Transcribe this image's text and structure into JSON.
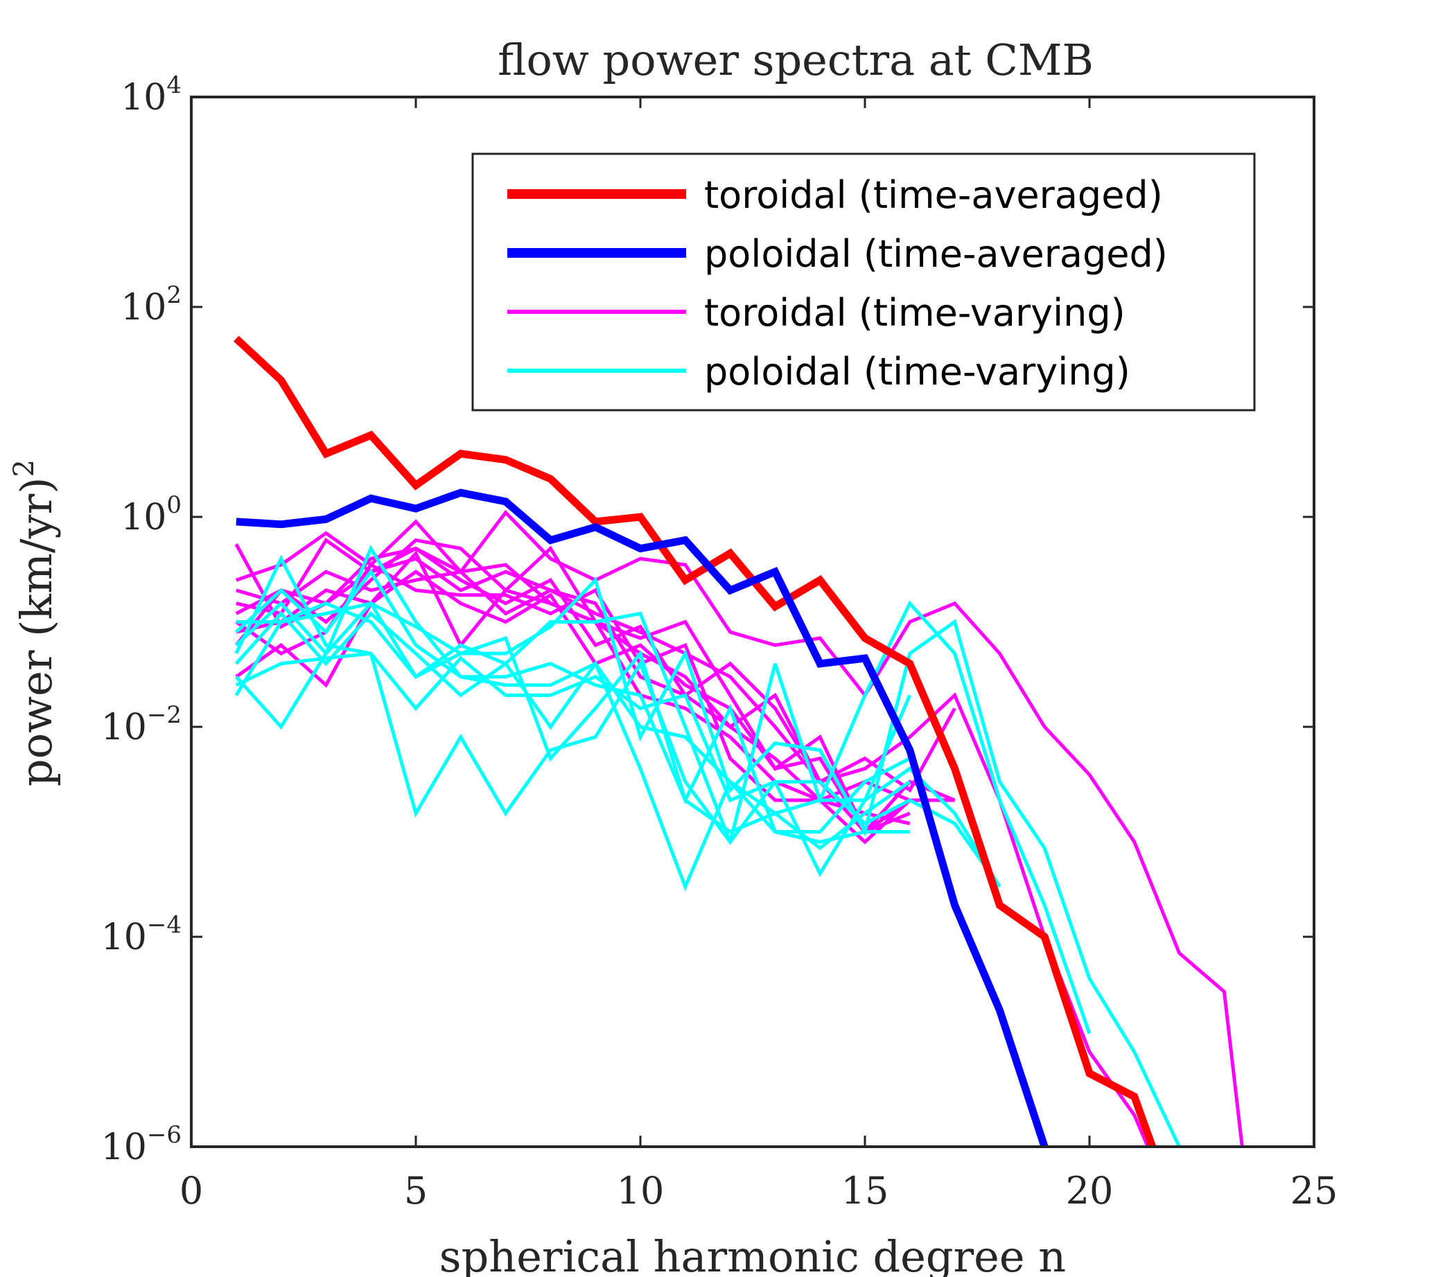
{
  "chart_data": {
    "type": "line",
    "title": "flow power spectra at CMB",
    "xlabel": "spherical harmonic degree n",
    "ylabel_base": "power (km/yr)",
    "ylabel_exp": "2",
    "xscale": "linear",
    "yscale": "log",
    "xlim": [
      0,
      25
    ],
    "ylim": [
      1e-06,
      10000.0
    ],
    "xticks": [
      0,
      5,
      10,
      15,
      20,
      25
    ],
    "xtick_labels": [
      "0",
      "5",
      "10",
      "15",
      "20",
      "25"
    ],
    "yticks": [
      1e-06,
      0.0001,
      0.01,
      1.0,
      100.0,
      10000.0
    ],
    "ytick_labels": [
      {
        "base": "10",
        "exp": "−6"
      },
      {
        "base": "10",
        "exp": "−4"
      },
      {
        "base": "10",
        "exp": "−2"
      },
      {
        "base": "10",
        "exp": "0"
      },
      {
        "base": "10",
        "exp": "2"
      },
      {
        "base": "10",
        "exp": "4"
      }
    ],
    "legend_position": "top-right",
    "legend": [
      {
        "label": "toroidal (time-averaged)",
        "color": "#ff0000",
        "weight": "thick"
      },
      {
        "label": "poloidal (time-averaged)",
        "color": "#0000ff",
        "weight": "thick"
      },
      {
        "label": "toroidal (time-varying)",
        "color": "#ff00ff",
        "weight": "thin"
      },
      {
        "label": "poloidal (time-varying)",
        "color": "#00ffff",
        "weight": "thin"
      }
    ],
    "series": [
      {
        "name": "toroidal (time-varying) 1",
        "color": "#ff00ff",
        "weight": "thin",
        "x": [
          1,
          2,
          3,
          4,
          5,
          6,
          7,
          8,
          9,
          10,
          11,
          12,
          13,
          14,
          15,
          16,
          17,
          18,
          19,
          20,
          21,
          22,
          23,
          23.4
        ],
        "y": [
          0.55,
          0.09,
          0.15,
          0.4,
          0.5,
          0.3,
          1.1,
          0.4,
          0.25,
          0.4,
          0.35,
          0.08,
          0.06,
          0.07,
          0.02,
          0.1,
          0.15,
          0.05,
          0.01,
          0.0035,
          0.0008,
          7e-05,
          3e-05,
          1e-06
        ]
      },
      {
        "name": "toroidal (time-varying) 2",
        "color": "#ff00ff",
        "weight": "thin",
        "x": [
          1,
          2,
          3,
          4,
          5,
          6,
          7,
          8,
          9,
          10,
          11,
          12,
          13,
          14,
          15,
          16,
          17,
          18,
          19,
          20,
          21,
          21.3
        ],
        "y": [
          0.25,
          0.35,
          0.7,
          0.35,
          0.9,
          0.3,
          0.35,
          0.15,
          0.1,
          0.05,
          0.03,
          0.01,
          0.02,
          0.003,
          0.004,
          0.008,
          0.02,
          0.002,
          0.0001,
          8e-06,
          2e-06,
          1e-06
        ]
      },
      {
        "name": "toroidal (time-varying) 3",
        "color": "#ff00ff",
        "weight": "thin",
        "x": [
          1,
          2,
          3,
          4,
          5,
          6,
          7,
          8,
          9,
          10,
          11,
          12,
          13,
          14,
          15,
          16,
          17
        ],
        "y": [
          0.12,
          0.2,
          0.15,
          0.3,
          0.4,
          0.2,
          0.3,
          0.2,
          0.12,
          0.08,
          0.05,
          0.03,
          0.01,
          0.003,
          0.001,
          0.002,
          0.002
        ]
      },
      {
        "name": "toroidal (time-varying) 4",
        "color": "#ff00ff",
        "weight": "thin",
        "x": [
          1,
          2,
          3,
          4,
          5,
          6,
          7,
          8,
          9,
          10,
          11,
          12,
          13,
          14,
          15,
          16,
          17
        ],
        "y": [
          0.06,
          0.2,
          0.1,
          0.25,
          0.6,
          0.5,
          0.2,
          0.5,
          0.1,
          0.07,
          0.1,
          0.02,
          0.004,
          0.008,
          0.001,
          0.003,
          0.002
        ]
      },
      {
        "name": "toroidal (time-varying) 5",
        "color": "#ff00ff",
        "weight": "thin",
        "x": [
          1,
          2,
          3,
          4,
          5,
          6,
          7,
          8,
          9,
          10,
          11,
          12,
          13,
          14,
          15,
          16
        ],
        "y": [
          0.15,
          0.12,
          0.6,
          0.3,
          0.5,
          0.25,
          0.15,
          0.25,
          0.06,
          0.09,
          0.02,
          0.01,
          0.005,
          0.002,
          0.0008,
          0.002
        ]
      },
      {
        "name": "toroidal (time-varying) 6",
        "color": "#ff00ff",
        "weight": "thin",
        "x": [
          1,
          2,
          3,
          4,
          5,
          6,
          7,
          8,
          9,
          10,
          11,
          12,
          13,
          14,
          15,
          16
        ],
        "y": [
          0.03,
          0.06,
          0.025,
          0.15,
          0.3,
          0.15,
          0.1,
          0.18,
          0.04,
          0.06,
          0.025,
          0.015,
          0.004,
          0.005,
          0.001,
          0.0015
        ]
      },
      {
        "name": "toroidal (time-varying) 7",
        "color": "#ff00ff",
        "weight": "thin",
        "x": [
          1,
          2,
          3,
          4,
          5,
          6,
          7,
          8,
          9,
          10,
          11,
          12,
          13,
          14,
          15,
          16
        ],
        "y": [
          0.08,
          0.1,
          0.2,
          0.15,
          0.45,
          0.06,
          0.2,
          0.15,
          0.1,
          0.02,
          0.015,
          0.008,
          0.003,
          0.002,
          0.0015,
          0.0012
        ]
      },
      {
        "name": "toroidal (time-varying) 8",
        "color": "#ff00ff",
        "weight": "thin",
        "x": [
          1,
          2,
          3,
          4,
          5,
          6,
          7,
          8,
          9,
          10,
          11,
          12,
          13,
          14,
          15,
          16,
          17
        ],
        "y": [
          0.2,
          0.15,
          0.3,
          0.2,
          0.25,
          0.3,
          0.12,
          0.2,
          0.15,
          0.03,
          0.02,
          0.04,
          0.015,
          0.003,
          0.005,
          0.0025,
          0.015
        ]
      },
      {
        "name": "toroidal (time-varying) 9",
        "color": "#ff00ff",
        "weight": "thin",
        "x": [
          1,
          2,
          3,
          4,
          5,
          6,
          7,
          8,
          9,
          10,
          11,
          12,
          13,
          14,
          15,
          16
        ],
        "y": [
          0.1,
          0.05,
          0.08,
          0.35,
          0.2,
          0.18,
          0.18,
          0.12,
          0.2,
          0.04,
          0.06,
          0.005,
          0.002,
          0.002,
          0.003,
          0.002
        ]
      },
      {
        "name": "poloidal (time-varying) 1",
        "color": "#00ffff",
        "weight": "thin",
        "x": [
          1,
          2,
          3,
          4,
          5,
          6,
          7,
          8,
          9,
          10,
          11,
          12,
          13,
          14,
          15,
          16,
          17,
          18,
          19,
          20,
          21,
          22
        ],
        "y": [
          0.02,
          0.1,
          0.12,
          0.15,
          0.09,
          0.05,
          0.05,
          0.09,
          0.25,
          0.008,
          0.05,
          0.0025,
          0.007,
          0.006,
          0.001,
          0.05,
          0.1,
          0.003,
          0.0007,
          4e-05,
          8e-06,
          1e-06
        ]
      },
      {
        "name": "poloidal (time-varying) 2",
        "color": "#00ffff",
        "weight": "thin",
        "x": [
          1,
          2,
          3,
          4,
          5,
          6,
          7,
          8,
          9,
          10,
          11,
          12,
          13,
          14,
          15,
          16,
          17,
          18,
          19,
          20
        ],
        "y": [
          0.04,
          0.12,
          0.04,
          0.12,
          0.05,
          0.02,
          0.04,
          0.1,
          0.1,
          0.12,
          0.01,
          0.0008,
          0.04,
          0.002,
          0.02,
          0.15,
          0.05,
          0.002,
          0.0002,
          1.2e-05
        ]
      },
      {
        "name": "poloidal (time-varying) 3",
        "color": "#00ffff",
        "weight": "thin",
        "x": [
          1,
          2,
          3,
          4,
          5,
          6,
          7,
          8,
          9,
          10,
          11,
          12,
          13,
          14,
          15,
          16,
          17,
          18
        ],
        "y": [
          0.03,
          0.01,
          0.05,
          0.5,
          0.1,
          0.03,
          0.025,
          0.025,
          0.04,
          0.004,
          0.0003,
          0.003,
          0.0015,
          0.002,
          0.002,
          0.004,
          0.0015,
          0.0003
        ]
      },
      {
        "name": "poloidal (time-varying) 4",
        "color": "#00ffff",
        "weight": "thin",
        "x": [
          1,
          2,
          3,
          4,
          5,
          6,
          7,
          8,
          9,
          10,
          11,
          12,
          13,
          14,
          15,
          16,
          17,
          18
        ],
        "y": [
          0.05,
          0.4,
          0.06,
          0.05,
          0.0015,
          0.008,
          0.0015,
          0.006,
          0.008,
          0.04,
          0.003,
          0.0008,
          0.003,
          0.003,
          0.0012,
          0.002,
          0.0012,
          0.0003
        ]
      },
      {
        "name": "poloidal (time-varying) 5",
        "color": "#00ffff",
        "weight": "thin",
        "x": [
          1,
          2,
          3,
          4,
          5,
          6,
          7,
          8,
          9,
          10,
          11,
          12,
          13,
          14,
          15,
          16
        ],
        "y": [
          0.025,
          0.04,
          0.045,
          0.05,
          0.015,
          0.045,
          0.02,
          0.02,
          0.03,
          0.015,
          0.02,
          0.002,
          0.003,
          0.0004,
          0.002,
          0.02
        ]
      },
      {
        "name": "poloidal (time-varying) 6",
        "color": "#00ffff",
        "weight": "thin",
        "x": [
          1,
          2,
          3,
          4,
          5,
          6,
          7,
          8,
          9,
          10,
          11,
          12,
          13,
          14,
          15,
          16
        ],
        "y": [
          0.06,
          0.15,
          0.05,
          0.15,
          0.03,
          0.06,
          0.04,
          0.01,
          0.04,
          0.01,
          0.008,
          0.003,
          0.001,
          0.0008,
          0.001,
          0.001
        ]
      },
      {
        "name": "poloidal (time-varying) 7",
        "color": "#00ffff",
        "weight": "thin",
        "x": [
          1,
          2,
          3,
          4,
          5,
          6,
          7,
          8,
          9,
          10,
          11,
          12,
          13,
          14,
          15,
          16
        ],
        "y": [
          0.1,
          0.1,
          0.15,
          0.1,
          0.03,
          0.05,
          0.07,
          0.005,
          0.015,
          0.05,
          0.002,
          0.001,
          0.0015,
          0.0007,
          0.0015,
          0.003
        ]
      },
      {
        "name": "poloidal (time-varying) 8",
        "color": "#00ffff",
        "weight": "thin",
        "x": [
          1,
          2,
          3,
          4,
          5,
          6,
          7,
          8,
          9,
          10,
          11,
          12,
          13,
          14,
          15,
          16
        ],
        "y": [
          0.08,
          0.2,
          0.08,
          0.3,
          0.06,
          0.03,
          0.03,
          0.04,
          0.025,
          0.02,
          0.002,
          0.015,
          0.001,
          0.001,
          0.003,
          0.005
        ]
      },
      {
        "name": "toroidal (time-averaged)",
        "color": "#ff0000",
        "weight": "thick",
        "x": [
          1,
          2,
          3,
          4,
          5,
          6,
          7,
          8,
          9,
          10,
          11,
          12,
          13,
          14,
          15,
          16,
          17,
          18,
          19,
          20,
          21,
          21.4
        ],
        "y": [
          50,
          20,
          4,
          6,
          2,
          4,
          3.5,
          2.3,
          0.9,
          1.0,
          0.25,
          0.45,
          0.14,
          0.25,
          0.07,
          0.04,
          0.004,
          0.0002,
          0.0001,
          5e-06,
          3e-06,
          1e-06
        ]
      },
      {
        "name": "poloidal (time-averaged)",
        "color": "#0000ff",
        "weight": "thick",
        "x": [
          1,
          2,
          3,
          4,
          5,
          6,
          7,
          8,
          9,
          10,
          11,
          12,
          13,
          14,
          15,
          16,
          17,
          18,
          19
        ],
        "y": [
          0.9,
          0.85,
          0.95,
          1.5,
          1.2,
          1.7,
          1.4,
          0.6,
          0.8,
          0.5,
          0.6,
          0.2,
          0.3,
          0.04,
          0.045,
          0.006,
          0.0002,
          2e-05,
          1e-06
        ]
      }
    ]
  }
}
